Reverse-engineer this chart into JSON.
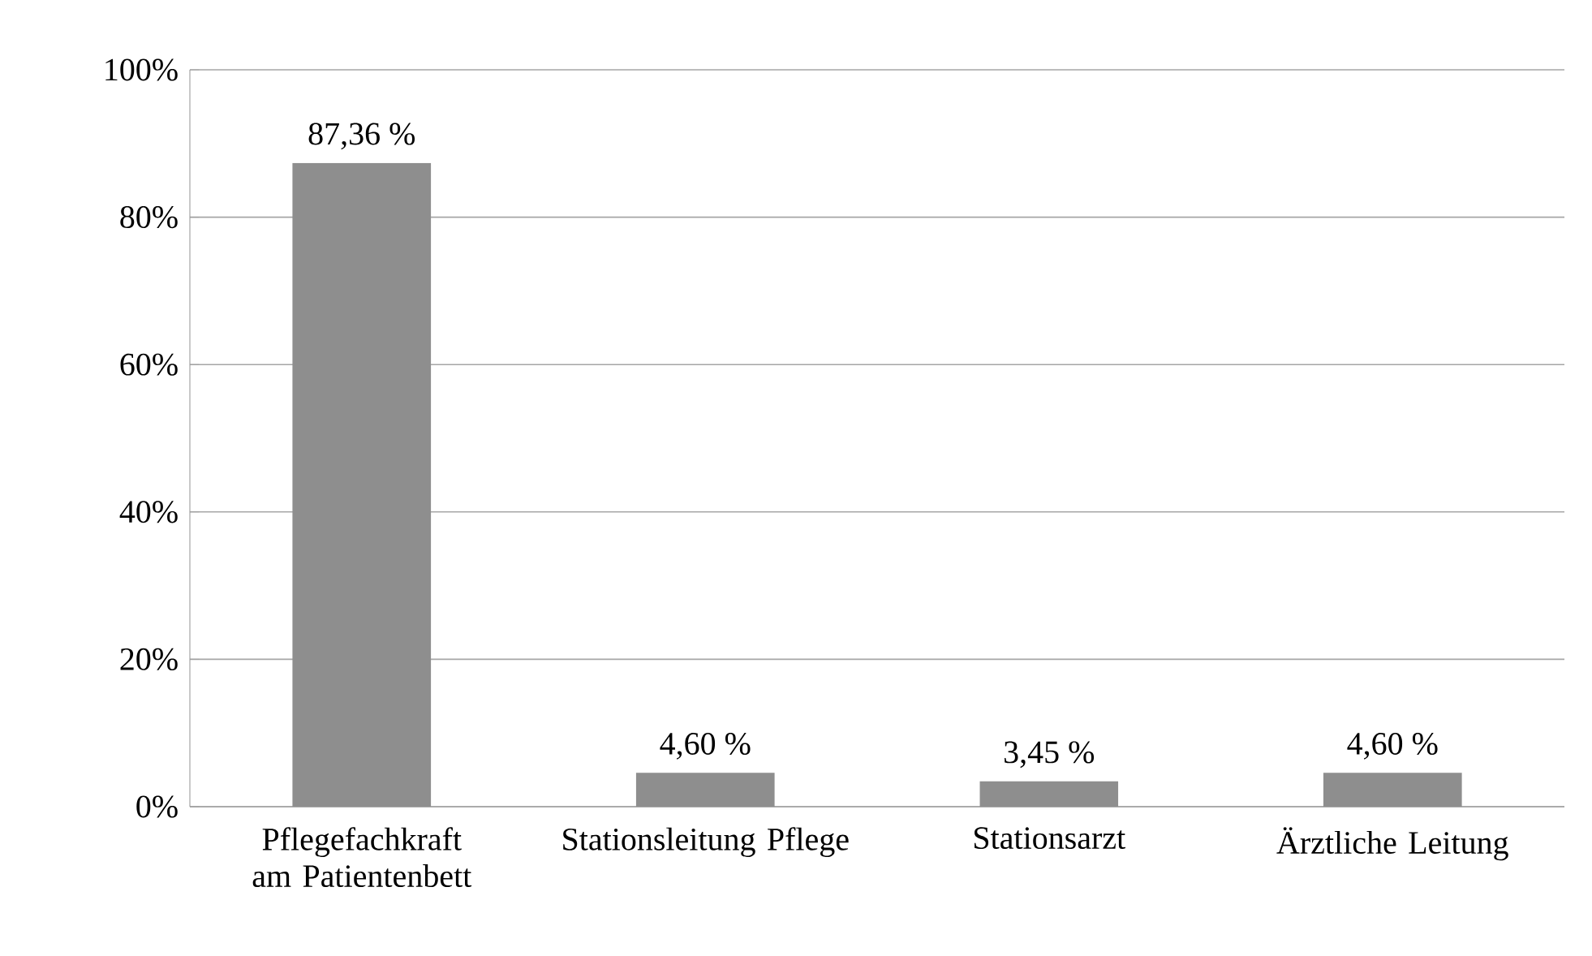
{
  "chart_data": {
    "type": "bar",
    "categories": [
      "Pflegefachkraft am Patientenbett",
      "Stationsleitung Pflege",
      "Stationsarzt",
      "Ärztliche Leitung"
    ],
    "values": [
      87.36,
      4.6,
      3.45,
      4.6
    ],
    "value_labels": [
      "87,36 %",
      "4,60 %",
      "3,45 %",
      "4,60 %"
    ],
    "color": "#8e8e8e",
    "ylim": [
      0,
      100
    ],
    "yticks": [
      {
        "value": 0,
        "label": "0%"
      },
      {
        "value": 20,
        "label": "20%"
      },
      {
        "value": 40,
        "label": "40%"
      },
      {
        "value": 60,
        "label": "60%"
      },
      {
        "value": 80,
        "label": "80%"
      },
      {
        "value": 100,
        "label": "100%"
      }
    ],
    "grid": "y"
  }
}
